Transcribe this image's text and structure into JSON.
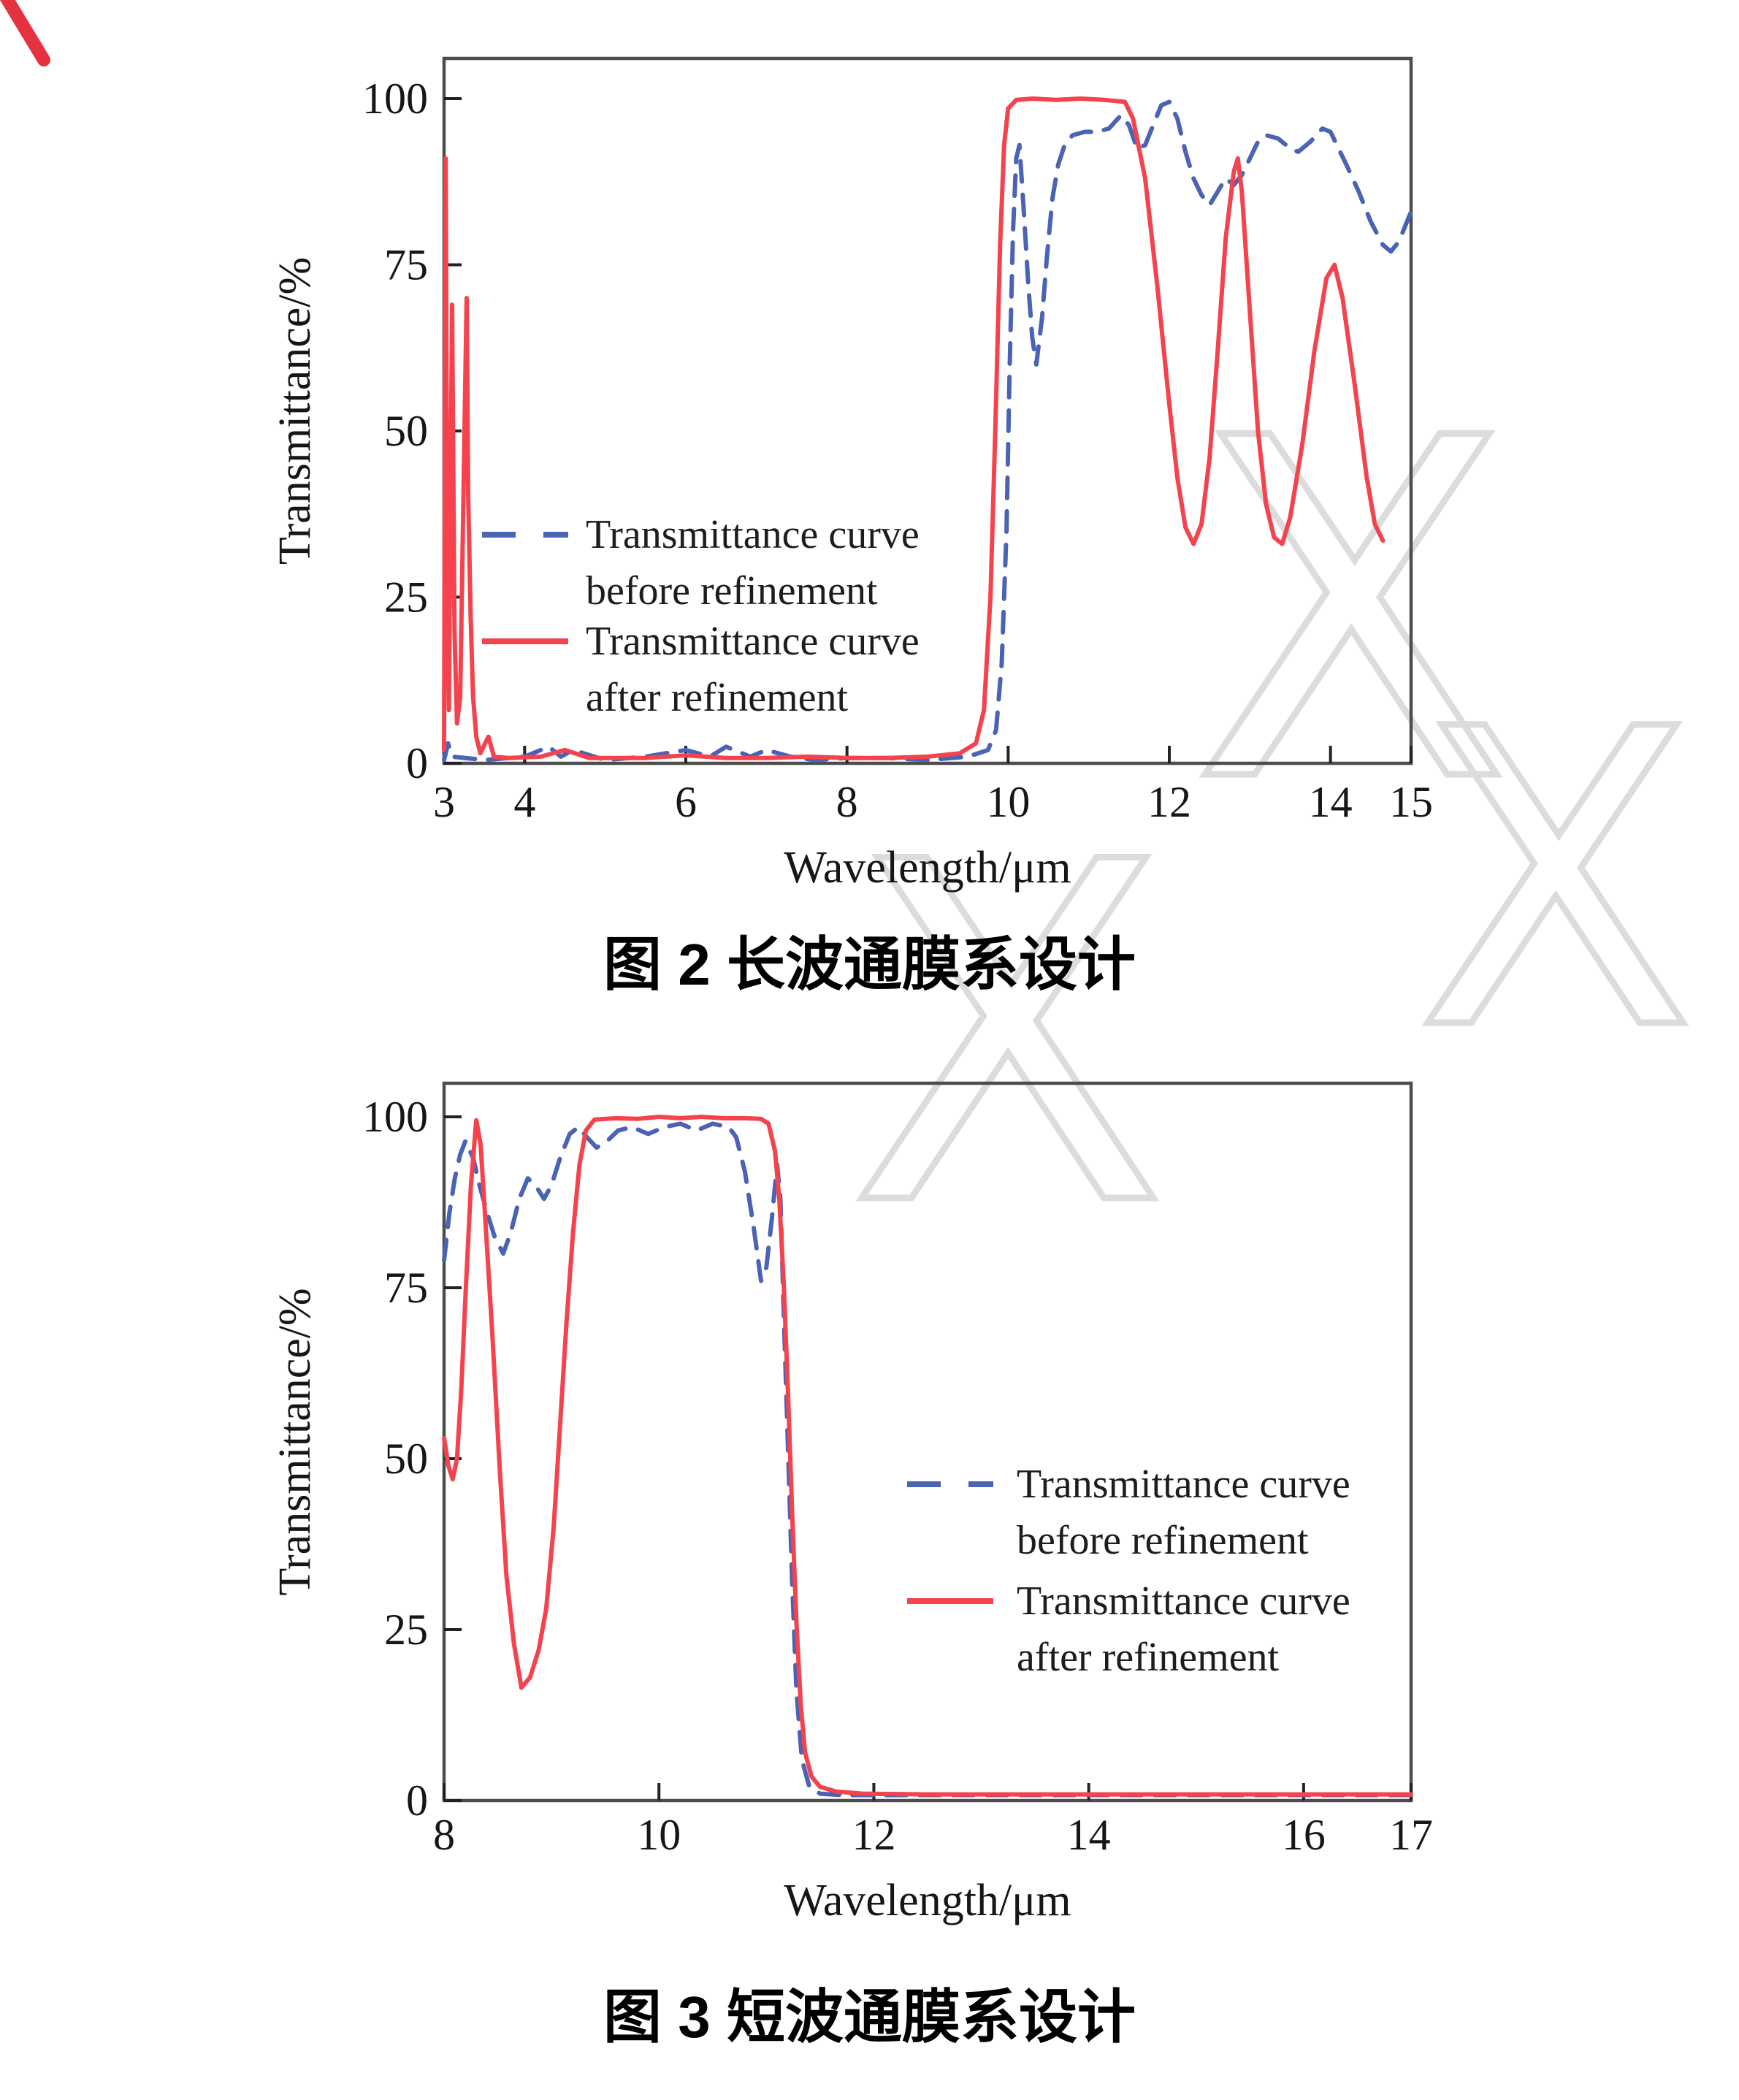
{
  "figure2": {
    "caption": "图 2 长波通膜系设计"
  },
  "figure3": {
    "caption": "图 3 短波通膜系设计"
  },
  "colors": {
    "before_refinement": "#4a63b4",
    "after_refinement": "#f4434d",
    "axis": "#4d4d4d",
    "text": "#161616",
    "watermark": "#dcdcdc",
    "corner_mark": "#e4323e"
  },
  "chart_data": [
    {
      "type": "line",
      "title": "",
      "caption": "图 2 长波通膜系设计",
      "xlabel": "Wavelength/μm",
      "ylabel": "Transmittance/%",
      "xlim": [
        3,
        15
      ],
      "ylim": [
        0,
        100
      ],
      "x_ticks": [
        3,
        4,
        6,
        8,
        10,
        12,
        14,
        15
      ],
      "y_ticks": [
        0,
        25,
        50,
        75,
        100
      ],
      "grid": false,
      "legend_position": "center-left-inside",
      "legend": [
        {
          "id": "before_refinement",
          "style": "dashed",
          "color": "#4a63b4",
          "label_line1": "Transmittance curve",
          "label_line2": "before refinement"
        },
        {
          "id": "after_refinement",
          "style": "solid",
          "color": "#f4434d",
          "label_line1": "Transmittance curve",
          "label_line2": "after refinement"
        }
      ],
      "series": [
        {
          "id": "before_refinement",
          "name": "Transmittance curve before refinement",
          "style": "dashed",
          "color": "#4a63b4",
          "points": [
            [
              3.0,
              0.5
            ],
            [
              3.05,
              3
            ],
            [
              3.1,
              1
            ],
            [
              3.5,
              0.5
            ],
            [
              4.0,
              1
            ],
            [
              4.3,
              2.5
            ],
            [
              4.45,
              1
            ],
            [
              4.6,
              2
            ],
            [
              5.0,
              0.5
            ],
            [
              5.5,
              1
            ],
            [
              6.0,
              2
            ],
            [
              6.3,
              1
            ],
            [
              6.5,
              2.5
            ],
            [
              6.8,
              1
            ],
            [
              7.0,
              2
            ],
            [
              7.3,
              1
            ],
            [
              7.6,
              0.5
            ],
            [
              8.0,
              0.8
            ],
            [
              8.5,
              0.8
            ],
            [
              9.0,
              0.5
            ],
            [
              9.5,
              1
            ],
            [
              9.75,
              2
            ],
            [
              9.85,
              5
            ],
            [
              9.92,
              15
            ],
            [
              9.98,
              35
            ],
            [
              10.02,
              60
            ],
            [
              10.06,
              80
            ],
            [
              10.1,
              91
            ],
            [
              10.14,
              93
            ],
            [
              10.2,
              82
            ],
            [
              10.25,
              72
            ],
            [
              10.3,
              64
            ],
            [
              10.35,
              60
            ],
            [
              10.42,
              67
            ],
            [
              10.48,
              76
            ],
            [
              10.55,
              85
            ],
            [
              10.62,
              90
            ],
            [
              10.7,
              93
            ],
            [
              10.8,
              94.5
            ],
            [
              10.95,
              95
            ],
            [
              11.1,
              95
            ],
            [
              11.25,
              95.5
            ],
            [
              11.4,
              97.5
            ],
            [
              11.5,
              96
            ],
            [
              11.6,
              92.5
            ],
            [
              11.7,
              93
            ],
            [
              11.8,
              96
            ],
            [
              11.9,
              99
            ],
            [
              12.0,
              99.5
            ],
            [
              12.1,
              97
            ],
            [
              12.2,
              92
            ],
            [
              12.3,
              88
            ],
            [
              12.4,
              85.5
            ],
            [
              12.5,
              84
            ],
            [
              12.6,
              86
            ],
            [
              12.7,
              88
            ],
            [
              12.8,
              87
            ],
            [
              12.9,
              88.5
            ],
            [
              13.0,
              91
            ],
            [
              13.1,
              93.5
            ],
            [
              13.2,
              94.5
            ],
            [
              13.35,
              94
            ],
            [
              13.5,
              92.5
            ],
            [
              13.6,
              92
            ],
            [
              13.75,
              93.5
            ],
            [
              13.9,
              95.5
            ],
            [
              14.0,
              95
            ],
            [
              14.1,
              92.5
            ],
            [
              14.2,
              90
            ],
            [
              14.35,
              86
            ],
            [
              14.5,
              81.5
            ],
            [
              14.65,
              78
            ],
            [
              14.75,
              77
            ],
            [
              14.85,
              78.5
            ],
            [
              15.0,
              83
            ]
          ]
        },
        {
          "id": "after_refinement",
          "name": "Transmittance curve after refinement",
          "style": "solid",
          "color": "#f4434d",
          "points": [
            [
              3.0,
              2
            ],
            [
              3.01,
              45
            ],
            [
              3.02,
              91
            ],
            [
              3.04,
              30
            ],
            [
              3.06,
              8
            ],
            [
              3.08,
              40
            ],
            [
              3.1,
              69
            ],
            [
              3.13,
              20
            ],
            [
              3.16,
              6
            ],
            [
              3.2,
              10
            ],
            [
              3.24,
              40
            ],
            [
              3.28,
              70
            ],
            [
              3.3,
              40
            ],
            [
              3.33,
              22
            ],
            [
              3.36,
              10
            ],
            [
              3.4,
              4
            ],
            [
              3.45,
              1.5
            ],
            [
              3.55,
              4
            ],
            [
              3.62,
              1
            ],
            [
              3.8,
              0.8
            ],
            [
              4.2,
              1
            ],
            [
              4.5,
              2
            ],
            [
              4.8,
              0.8
            ],
            [
              5.5,
              0.8
            ],
            [
              6.0,
              1.2
            ],
            [
              6.5,
              0.8
            ],
            [
              7.0,
              0.8
            ],
            [
              7.5,
              1
            ],
            [
              8.0,
              0.8
            ],
            [
              8.5,
              0.8
            ],
            [
              9.0,
              1
            ],
            [
              9.4,
              1.5
            ],
            [
              9.6,
              3
            ],
            [
              9.7,
              8
            ],
            [
              9.78,
              25
            ],
            [
              9.84,
              50
            ],
            [
              9.9,
              78
            ],
            [
              9.95,
              93
            ],
            [
              10.0,
              98.5
            ],
            [
              10.1,
              99.8
            ],
            [
              10.3,
              100
            ],
            [
              10.6,
              99.8
            ],
            [
              10.9,
              100
            ],
            [
              11.2,
              99.8
            ],
            [
              11.45,
              99.5
            ],
            [
              11.55,
              97
            ],
            [
              11.7,
              88
            ],
            [
              11.85,
              72
            ],
            [
              12.0,
              54
            ],
            [
              12.1,
              43
            ],
            [
              12.2,
              35.5
            ],
            [
              12.3,
              33
            ],
            [
              12.4,
              36
            ],
            [
              12.5,
              46
            ],
            [
              12.6,
              62
            ],
            [
              12.7,
              79
            ],
            [
              12.8,
              89
            ],
            [
              12.85,
              91
            ],
            [
              12.9,
              86
            ],
            [
              13.0,
              68
            ],
            [
              13.1,
              50
            ],
            [
              13.2,
              39
            ],
            [
              13.3,
              34
            ],
            [
              13.4,
              33
            ],
            [
              13.5,
              37
            ],
            [
              13.65,
              48
            ],
            [
              13.8,
              62
            ],
            [
              13.95,
              73
            ],
            [
              14.05,
              75
            ],
            [
              14.15,
              70
            ],
            [
              14.3,
              57
            ],
            [
              14.45,
              43
            ],
            [
              14.55,
              36
            ],
            [
              14.65,
              33.5
            ]
          ]
        }
      ]
    },
    {
      "type": "line",
      "title": "",
      "caption": "图 3 短波通膜系设计",
      "xlabel": "Wavelength/μm",
      "ylabel": "Transmittance/%",
      "xlim": [
        8,
        17
      ],
      "ylim": [
        0,
        100
      ],
      "x_ticks": [
        8,
        10,
        12,
        14,
        16,
        17
      ],
      "y_ticks": [
        0,
        25,
        50,
        75,
        100
      ],
      "grid": false,
      "legend_position": "center-right-inside",
      "legend": [
        {
          "id": "before_refinement",
          "style": "dashed",
          "color": "#4a63b4",
          "label_line1": "Transmittance curve",
          "label_line2": "before refinement"
        },
        {
          "id": "after_refinement",
          "style": "solid",
          "color": "#f4434d",
          "label_line1": "Transmittance curve",
          "label_line2": "after refinement"
        }
      ],
      "series": [
        {
          "id": "before_refinement",
          "name": "Transmittance curve before refinement",
          "style": "dashed",
          "color": "#4a63b4",
          "points": [
            [
              8.0,
              79
            ],
            [
              8.05,
              86
            ],
            [
              8.1,
              91
            ],
            [
              8.15,
              94.5
            ],
            [
              8.2,
              96.5
            ],
            [
              8.27,
              94
            ],
            [
              8.33,
              90
            ],
            [
              8.4,
              86
            ],
            [
              8.47,
              82.5
            ],
            [
              8.55,
              80
            ],
            [
              8.62,
              83
            ],
            [
              8.7,
              88
            ],
            [
              8.78,
              91
            ],
            [
              8.85,
              90
            ],
            [
              8.93,
              88
            ],
            [
              9.0,
              90
            ],
            [
              9.08,
              94
            ],
            [
              9.17,
              97.5
            ],
            [
              9.25,
              98.5
            ],
            [
              9.33,
              97
            ],
            [
              9.42,
              95.5
            ],
            [
              9.52,
              96.5
            ],
            [
              9.62,
              98
            ],
            [
              9.75,
              98.5
            ],
            [
              9.9,
              97.5
            ],
            [
              10.05,
              98.5
            ],
            [
              10.2,
              99
            ],
            [
              10.35,
              98
            ],
            [
              10.5,
              99
            ],
            [
              10.65,
              98.5
            ],
            [
              10.72,
              97
            ],
            [
              10.8,
              92
            ],
            [
              10.88,
              84
            ],
            [
              10.95,
              76
            ],
            [
              11.0,
              78
            ],
            [
              11.05,
              85
            ],
            [
              11.1,
              93
            ],
            [
              11.13,
              88
            ],
            [
              11.16,
              72
            ],
            [
              11.2,
              52
            ],
            [
              11.24,
              32
            ],
            [
              11.28,
              16
            ],
            [
              11.33,
              6
            ],
            [
              11.4,
              2
            ],
            [
              11.5,
              1
            ],
            [
              11.7,
              0.8
            ],
            [
              12.5,
              0.8
            ],
            [
              14.0,
              0.8
            ],
            [
              16.0,
              0.8
            ],
            [
              17.0,
              0.8
            ]
          ]
        },
        {
          "id": "after_refinement",
          "name": "Transmittance curve after refinement",
          "style": "solid",
          "color": "#f4434d",
          "points": [
            [
              8.0,
              53
            ],
            [
              8.04,
              49
            ],
            [
              8.08,
              47
            ],
            [
              8.12,
              50
            ],
            [
              8.16,
              60
            ],
            [
              8.2,
              74
            ],
            [
              8.25,
              90
            ],
            [
              8.3,
              99.5
            ],
            [
              8.34,
              96
            ],
            [
              8.38,
              86
            ],
            [
              8.45,
              68
            ],
            [
              8.52,
              48
            ],
            [
              8.58,
              33
            ],
            [
              8.65,
              23
            ],
            [
              8.72,
              16.5
            ],
            [
              8.8,
              18
            ],
            [
              8.88,
              22
            ],
            [
              8.95,
              28
            ],
            [
              9.02,
              40
            ],
            [
              9.08,
              55
            ],
            [
              9.14,
              70
            ],
            [
              9.2,
              83
            ],
            [
              9.26,
              93
            ],
            [
              9.32,
              98
            ],
            [
              9.4,
              99.6
            ],
            [
              9.6,
              99.8
            ],
            [
              9.8,
              99.7
            ],
            [
              10.0,
              100
            ],
            [
              10.2,
              99.8
            ],
            [
              10.4,
              100
            ],
            [
              10.6,
              99.8
            ],
            [
              10.8,
              99.8
            ],
            [
              10.95,
              99.7
            ],
            [
              11.02,
              99
            ],
            [
              11.08,
              95
            ],
            [
              11.12,
              88
            ],
            [
              11.16,
              76
            ],
            [
              11.2,
              60
            ],
            [
              11.24,
              42
            ],
            [
              11.28,
              26
            ],
            [
              11.32,
              14
            ],
            [
              11.36,
              7
            ],
            [
              11.42,
              3.5
            ],
            [
              11.5,
              2
            ],
            [
              11.65,
              1.3
            ],
            [
              11.9,
              1
            ],
            [
              12.5,
              0.9
            ],
            [
              13.5,
              0.9
            ],
            [
              14.5,
              0.9
            ],
            [
              15.5,
              0.9
            ],
            [
              16.5,
              0.9
            ],
            [
              17.0,
              0.9
            ]
          ]
        }
      ]
    }
  ],
  "decorations": {
    "watermark_glyphs": [
      "X",
      "X",
      "X"
    ],
    "corner_mark": true
  }
}
